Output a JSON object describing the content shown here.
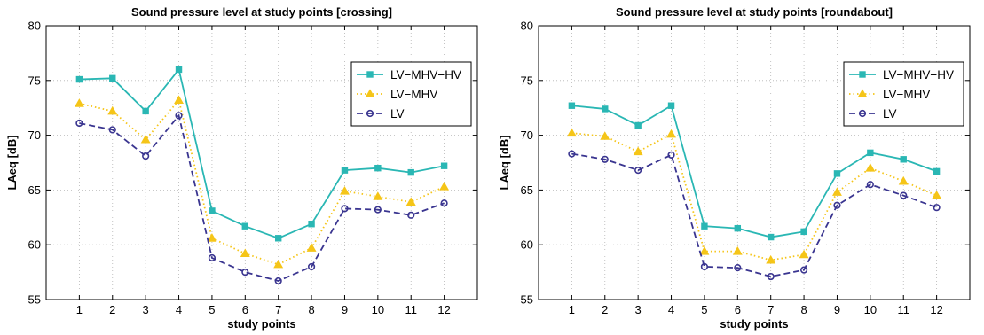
{
  "chart_data": [
    {
      "type": "line",
      "title": "Sound pressure level at study points [crossing]",
      "xlabel": "study points",
      "ylabel": "LAeq [dB]",
      "categories": [
        "1",
        "2",
        "3",
        "4",
        "5",
        "6",
        "7",
        "8",
        "9",
        "10",
        "11",
        "12"
      ],
      "ylim": [
        55,
        80
      ],
      "yticks": [
        "55",
        "60",
        "65",
        "70",
        "75",
        "80"
      ],
      "grid": true,
      "legend_position": "top-right",
      "series": [
        {
          "name": "LV−MHV−HV",
          "color": "#2ab7b4",
          "marker": "square",
          "dash": "solid",
          "values": [
            75.1,
            75.2,
            72.2,
            76.0,
            63.1,
            61.7,
            60.6,
            61.9,
            66.8,
            67.0,
            66.6,
            67.2
          ]
        },
        {
          "name": "LV−MHV",
          "color": "#f5c518",
          "marker": "triangle",
          "dash": "dotted",
          "values": [
            72.9,
            72.2,
            69.6,
            73.2,
            60.6,
            59.2,
            58.2,
            59.7,
            64.9,
            64.4,
            63.9,
            65.3
          ]
        },
        {
          "name": "LV",
          "color": "#3a3590",
          "marker": "circle",
          "dash": "dashed",
          "values": [
            71.1,
            70.5,
            68.1,
            71.8,
            58.8,
            57.5,
            56.7,
            58.0,
            63.3,
            63.2,
            62.7,
            63.8
          ]
        }
      ]
    },
    {
      "type": "line",
      "title": "Sound pressure level at study points [roundabout]",
      "xlabel": "study points",
      "ylabel": "LAeq [dB]",
      "categories": [
        "1",
        "2",
        "3",
        "4",
        "5",
        "6",
        "7",
        "8",
        "9",
        "10",
        "11",
        "12"
      ],
      "ylim": [
        55,
        80
      ],
      "yticks": [
        "55",
        "60",
        "65",
        "70",
        "75",
        "80"
      ],
      "grid": true,
      "legend_position": "top-right",
      "series": [
        {
          "name": "LV−MHV−HV",
          "color": "#2ab7b4",
          "marker": "square",
          "dash": "solid",
          "values": [
            72.7,
            72.4,
            70.9,
            72.7,
            61.7,
            61.5,
            60.7,
            61.2,
            66.5,
            68.4,
            67.8,
            66.7
          ]
        },
        {
          "name": "LV−MHV",
          "color": "#f5c518",
          "marker": "triangle",
          "dash": "dotted",
          "values": [
            70.2,
            69.9,
            68.5,
            70.1,
            59.4,
            59.4,
            58.6,
            59.1,
            64.8,
            67.0,
            65.8,
            64.5
          ]
        },
        {
          "name": "LV",
          "color": "#3a3590",
          "marker": "circle",
          "dash": "dashed",
          "values": [
            68.3,
            67.8,
            66.8,
            68.2,
            58.0,
            57.9,
            57.1,
            57.7,
            63.6,
            65.5,
            64.5,
            63.4
          ]
        }
      ]
    }
  ]
}
